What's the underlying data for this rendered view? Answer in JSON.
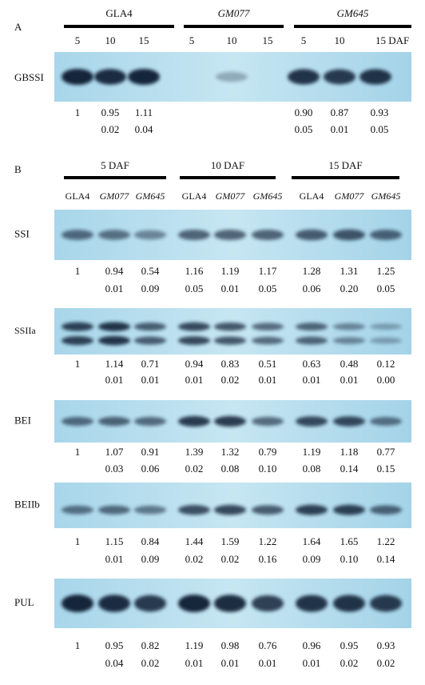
{
  "panel_a": {
    "label": "A",
    "groups": [
      "GLA4",
      "GM077",
      "GM645"
    ],
    "lane_labels": [
      "5",
      "10",
      "15",
      "5",
      "10",
      "15",
      "5",
      "10",
      "15 DAF"
    ],
    "blot": {
      "label": "GBSSI",
      "ratios": [
        "1",
        "0.95",
        "1.11",
        null,
        null,
        null,
        "0.90",
        "0.87",
        "0.93"
      ],
      "sd": [
        null,
        "0.02",
        "0.04",
        null,
        null,
        null,
        "0.05",
        "0.01",
        "0.05"
      ]
    }
  },
  "panel_b": {
    "label": "B",
    "groups": [
      "5 DAF",
      "10 DAF",
      "15 DAF"
    ],
    "lane_labels": [
      "GLA4",
      "GM077",
      "GM645",
      "GLA4",
      "GM077",
      "GM645",
      "GLA4",
      "GM077",
      "GM645"
    ],
    "blots": [
      {
        "label": "SSI",
        "ratios": [
          "1",
          "0.94",
          "0.54",
          "1.16",
          "1.19",
          "1.17",
          "1.28",
          "1.31",
          "1.25"
        ],
        "sd": [
          null,
          "0.01",
          "0.09",
          "0.05",
          "0.01",
          "0.05",
          "0.06",
          "0.20",
          "0.05"
        ]
      },
      {
        "label": "SSIIa",
        "ratios": [
          "1",
          "1.14",
          "0.71",
          "0.94",
          "0.83",
          "0.51",
          "0.63",
          "0.48",
          "0.12"
        ],
        "sd": [
          null,
          "0.01",
          "0.01",
          "0.01",
          "0.02",
          "0.01",
          "0.01",
          "0.01",
          "0.00"
        ]
      },
      {
        "label": "BEI",
        "ratios": [
          "1",
          "1.07",
          "0.91",
          "1.39",
          "1.32",
          "0.79",
          "1.19",
          "1.18",
          "0.77"
        ],
        "sd": [
          null,
          "0.03",
          "0.06",
          "0.02",
          "0.08",
          "0.10",
          "0.08",
          "0.14",
          "0.15"
        ]
      },
      {
        "label": "BEIIb",
        "ratios": [
          "1",
          "1.15",
          "0.84",
          "1.44",
          "1.59",
          "1.22",
          "1.64",
          "1.65",
          "1.22"
        ],
        "sd": [
          null,
          "0.01",
          "0.09",
          "0.02",
          "0.02",
          "0.16",
          "0.09",
          "0.10",
          "0.14"
        ]
      },
      {
        "label": "PUL",
        "ratios": [
          "1",
          "0.95",
          "0.82",
          "1.19",
          "0.98",
          "0.76",
          "0.96",
          "0.95",
          "0.93"
        ],
        "sd": [
          null,
          "0.04",
          "0.02",
          "0.01",
          "0.01",
          "0.01",
          "0.01",
          "0.02",
          "0.02"
        ]
      }
    ]
  }
}
